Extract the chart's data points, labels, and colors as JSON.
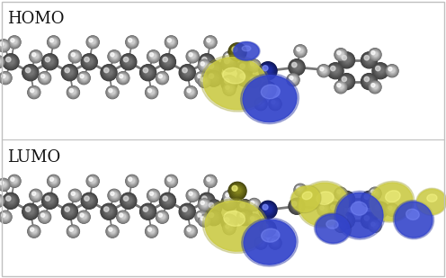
{
  "title_top": "HOMO",
  "title_bottom": "LUMO",
  "background_color": "#ffffff",
  "border_color": "#c0c0c0",
  "figsize": [
    4.96,
    3.09
  ],
  "dpi": 100,
  "label_fontsize": 13,
  "label_color": "#111111",
  "gray_atom": "#888888",
  "gray_atom_light": "#cccccc",
  "gray_atom_dark": "#555555",
  "white_atom": "#f0f0f0",
  "white_atom_edge": "#aaaaaa",
  "blue_atom": "#2233bb",
  "sulfur_atom": "#aaaa22",
  "blue_orbital": "#3344cc",
  "yellow_orbital": "#cccc44",
  "stick_color": "#777777"
}
